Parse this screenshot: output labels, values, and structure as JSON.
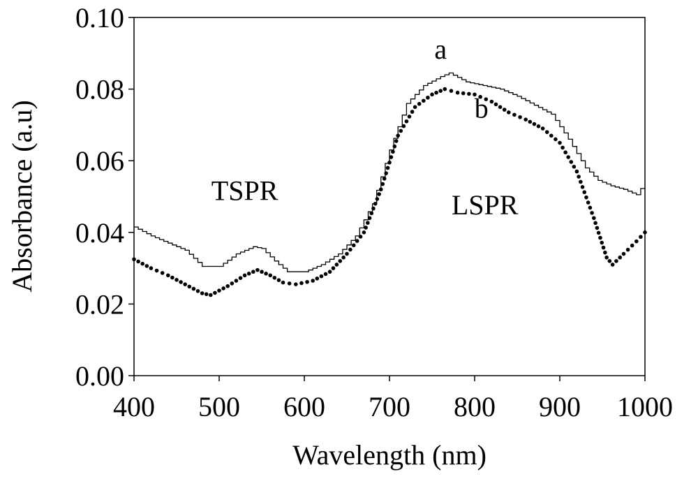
{
  "chart_data": {
    "type": "line",
    "title": "",
    "xlabel": "Wavelength (nm)",
    "ylabel": "Absorbance (a.u)",
    "xlim": [
      400,
      1000
    ],
    "ylim": [
      0.0,
      0.1
    ],
    "xticks": [
      "400",
      "500",
      "600",
      "700",
      "800",
      "900",
      "1000"
    ],
    "yticks": [
      "0.00",
      "0.02",
      "0.04",
      "0.06",
      "0.08",
      "0.10"
    ],
    "grid": false,
    "legend": "none",
    "series": [
      {
        "name": "a",
        "style": "solid-step",
        "color": "#000000",
        "points": [
          [
            400,
            0.0415
          ],
          [
            420,
            0.039
          ],
          [
            440,
            0.037
          ],
          [
            460,
            0.035
          ],
          [
            480,
            0.0305
          ],
          [
            500,
            0.0305
          ],
          [
            520,
            0.034
          ],
          [
            540,
            0.036
          ],
          [
            550,
            0.0355
          ],
          [
            565,
            0.032
          ],
          [
            580,
            0.029
          ],
          [
            600,
            0.029
          ],
          [
            620,
            0.031
          ],
          [
            640,
            0.034
          ],
          [
            660,
            0.039
          ],
          [
            680,
            0.048
          ],
          [
            700,
            0.063
          ],
          [
            720,
            0.076
          ],
          [
            740,
            0.081
          ],
          [
            760,
            0.0835
          ],
          [
            770,
            0.0845
          ],
          [
            790,
            0.082
          ],
          [
            810,
            0.081
          ],
          [
            830,
            0.08
          ],
          [
            850,
            0.078
          ],
          [
            870,
            0.0755
          ],
          [
            890,
            0.073
          ],
          [
            910,
            0.066
          ],
          [
            930,
            0.058
          ],
          [
            945,
            0.0545
          ],
          [
            960,
            0.053
          ],
          [
            975,
            0.052
          ],
          [
            990,
            0.0505
          ],
          [
            1000,
            0.054
          ]
        ]
      },
      {
        "name": "b",
        "style": "dotted",
        "color": "#000000",
        "points": [
          [
            400,
            0.0325
          ],
          [
            420,
            0.03
          ],
          [
            440,
            0.028
          ],
          [
            460,
            0.0255
          ],
          [
            480,
            0.023
          ],
          [
            490,
            0.0225
          ],
          [
            510,
            0.025
          ],
          [
            530,
            0.028
          ],
          [
            545,
            0.0295
          ],
          [
            560,
            0.028
          ],
          [
            575,
            0.026
          ],
          [
            590,
            0.0255
          ],
          [
            610,
            0.0265
          ],
          [
            630,
            0.029
          ],
          [
            650,
            0.034
          ],
          [
            670,
            0.04
          ],
          [
            690,
            0.052
          ],
          [
            710,
            0.067
          ],
          [
            730,
            0.075
          ],
          [
            750,
            0.0785
          ],
          [
            765,
            0.08
          ],
          [
            780,
            0.079
          ],
          [
            800,
            0.0785
          ],
          [
            820,
            0.0765
          ],
          [
            840,
            0.0735
          ],
          [
            860,
            0.0715
          ],
          [
            880,
            0.069
          ],
          [
            900,
            0.065
          ],
          [
            920,
            0.057
          ],
          [
            940,
            0.044
          ],
          [
            955,
            0.033
          ],
          [
            962,
            0.031
          ],
          [
            975,
            0.034
          ],
          [
            990,
            0.0375
          ],
          [
            1000,
            0.04
          ]
        ]
      }
    ],
    "annotations": [
      {
        "text": "a",
        "x": 760,
        "y": 0.0885
      },
      {
        "text": "b",
        "x": 808,
        "y": 0.072
      },
      {
        "text": "TSPR",
        "x": 530,
        "y": 0.049
      },
      {
        "text": "LSPR",
        "x": 812,
        "y": 0.045
      }
    ]
  }
}
